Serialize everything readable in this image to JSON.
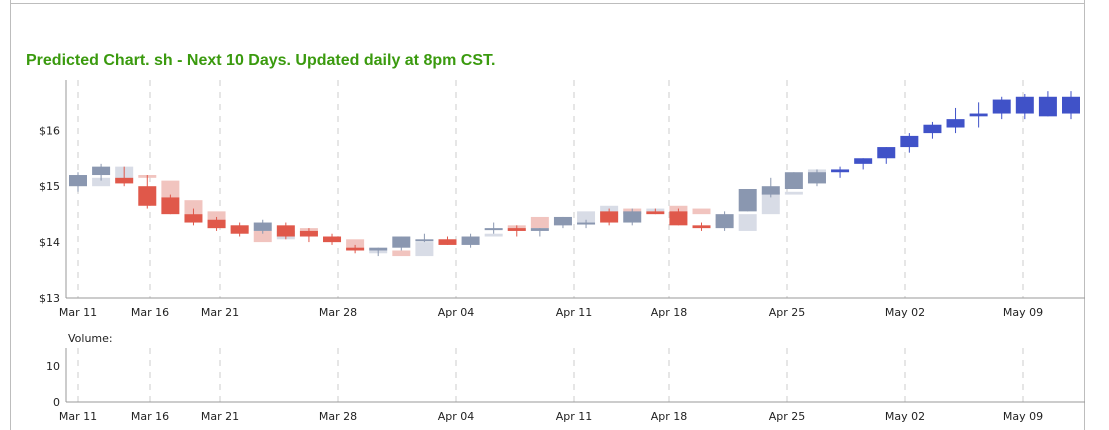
{
  "title": "Predicted Chart. sh - Next 10 Days. Updated daily at 8pm CST.",
  "colors": {
    "title": "#3a9a0e",
    "up_strong": "#8a97b0",
    "up_faded": "#d8dce6",
    "down_strong": "#e0584a",
    "down_faded": "#f1c4bf",
    "pred_up": "#4052c8",
    "pred_down": "#f1431d",
    "axis": "#999999",
    "grid": "#cccccc"
  },
  "chart_data": [
    {
      "type": "candlestick",
      "x_labels": [
        "Mar 11",
        "Mar 16",
        "Mar 21",
        "Mar 28",
        "Apr 04",
        "Apr 11",
        "Apr 18",
        "Apr 25",
        "May 02",
        "May 09"
      ],
      "y_ticks": [
        "$13",
        "$14",
        "$15",
        "$16"
      ],
      "ylim": [
        13,
        16.9
      ],
      "grid": "vertical dashed",
      "series": [
        {
          "date": "Mar 11",
          "open": 15.0,
          "high": 15.25,
          "low": 14.9,
          "close": 15.2,
          "echo_open": 15.05,
          "echo_close": 15.15,
          "echo_color": "down"
        },
        {
          "date": "Mar 12",
          "open": 15.2,
          "high": 15.4,
          "low": 15.1,
          "close": 15.35,
          "echo_open": 15.0,
          "echo_close": 15.15,
          "echo_color": "up"
        },
        {
          "date": "Mar 13",
          "open": 15.15,
          "high": 15.35,
          "low": 15.0,
          "close": 15.05,
          "echo_open": 15.1,
          "echo_close": 15.35,
          "echo_color": "up"
        },
        {
          "date": "Mar 14",
          "open": 15.0,
          "high": 15.2,
          "low": 14.6,
          "close": 14.65,
          "echo_open": 15.15,
          "echo_close": 15.2,
          "echo_color": "down"
        },
        {
          "date": "Mar 15",
          "open": 14.8,
          "high": 14.85,
          "low": 14.5,
          "close": 14.5,
          "echo_open": 14.8,
          "echo_close": 15.1,
          "echo_color": "down"
        },
        {
          "date": "Mar 16",
          "open": 14.5,
          "high": 14.6,
          "low": 14.3,
          "close": 14.35,
          "echo_open": 14.5,
          "echo_close": 14.75,
          "echo_color": "down"
        },
        {
          "date": "Mar 17",
          "open": 14.4,
          "high": 14.45,
          "low": 14.2,
          "close": 14.25,
          "echo_open": 14.25,
          "echo_close": 14.55,
          "echo_color": "down"
        },
        {
          "date": "Mar 18",
          "open": 14.3,
          "high": 14.35,
          "low": 14.1,
          "close": 14.15,
          "echo_open": 14.2,
          "echo_close": 14.3,
          "echo_color": "down"
        },
        {
          "date": "Mar 19",
          "open": 14.2,
          "high": 14.4,
          "low": 14.15,
          "close": 14.35,
          "echo_open": 14.2,
          "echo_close": 14.0,
          "echo_color": "down"
        },
        {
          "date": "Mar 20",
          "open": 14.3,
          "high": 14.35,
          "low": 14.05,
          "close": 14.1,
          "echo_open": 14.05,
          "echo_close": 14.2,
          "echo_color": "up"
        },
        {
          "date": "Mar 21",
          "open": 14.2,
          "high": 14.25,
          "low": 14.0,
          "close": 14.1,
          "echo_open": 14.25,
          "echo_close": 14.1,
          "echo_color": "down"
        },
        {
          "date": "Mar 22",
          "open": 14.1,
          "high": 14.15,
          "low": 13.95,
          "close": 14.0,
          "echo_open": 14.1,
          "echo_close": 14.0,
          "echo_color": "down"
        },
        {
          "date": "Mar 25",
          "open": 13.9,
          "high": 13.95,
          "low": 13.8,
          "close": 13.85,
          "echo_open": 14.05,
          "echo_close": 13.85,
          "echo_color": "down"
        },
        {
          "date": "Mar 26",
          "open": 13.85,
          "high": 13.9,
          "low": 13.75,
          "close": 13.9,
          "echo_open": 13.8,
          "echo_close": 13.85,
          "echo_color": "up"
        },
        {
          "date": "Mar 27",
          "open": 13.9,
          "high": 14.1,
          "low": 13.85,
          "close": 14.1,
          "echo_open": 13.85,
          "echo_close": 13.75,
          "echo_color": "down"
        },
        {
          "date": "Mar 28",
          "open": 14.05,
          "high": 14.15,
          "low": 14.0,
          "close": 14.05,
          "echo_open": 13.75,
          "echo_close": 14.0,
          "echo_color": "up"
        },
        {
          "date": "Mar 29",
          "open": 14.05,
          "high": 14.1,
          "low": 13.95,
          "close": 13.95,
          "echo_open": 14.05,
          "echo_close": 13.95,
          "echo_color": "down"
        },
        {
          "date": "Apr 01",
          "open": 13.95,
          "high": 14.15,
          "low": 13.9,
          "close": 14.1,
          "echo_open": 13.95,
          "echo_close": 14.0,
          "echo_color": "up"
        },
        {
          "date": "Apr 02",
          "open": 14.25,
          "high": 14.35,
          "low": 14.15,
          "close": 14.25,
          "echo_open": 14.1,
          "echo_close": 14.15,
          "echo_color": "up"
        },
        {
          "date": "Apr 03",
          "open": 14.25,
          "high": 14.3,
          "low": 14.1,
          "close": 14.2,
          "echo_open": 14.2,
          "echo_close": 14.3,
          "echo_color": "down"
        },
        {
          "date": "Apr 04",
          "open": 14.2,
          "high": 14.25,
          "low": 14.1,
          "close": 14.25,
          "echo_open": 14.25,
          "echo_close": 14.45,
          "echo_color": "down"
        },
        {
          "date": "Apr 05",
          "open": 14.3,
          "high": 14.45,
          "low": 14.25,
          "close": 14.45,
          "echo_open": 14.3,
          "echo_close": 14.35,
          "echo_color": "up"
        },
        {
          "date": "Apr 08",
          "open": 14.35,
          "high": 14.4,
          "low": 14.25,
          "close": 14.35,
          "echo_open": 14.35,
          "echo_close": 14.55,
          "echo_color": "up"
        },
        {
          "date": "Apr 09",
          "open": 14.55,
          "high": 14.6,
          "low": 14.3,
          "close": 14.35,
          "echo_open": 14.4,
          "echo_close": 14.65,
          "echo_color": "up"
        },
        {
          "date": "Apr 10",
          "open": 14.35,
          "high": 14.6,
          "low": 14.3,
          "close": 14.55,
          "echo_open": 14.5,
          "echo_close": 14.6,
          "echo_color": "down"
        },
        {
          "date": "Apr 11",
          "open": 14.55,
          "high": 14.6,
          "low": 14.5,
          "close": 14.5,
          "echo_open": 14.55,
          "echo_close": 14.6,
          "echo_color": "up"
        },
        {
          "date": "Apr 12",
          "open": 14.55,
          "high": 14.6,
          "low": 14.3,
          "close": 14.3,
          "echo_open": 14.5,
          "echo_close": 14.65,
          "echo_color": "down"
        },
        {
          "date": "Apr 15",
          "open": 14.3,
          "high": 14.35,
          "low": 14.2,
          "close": 14.25,
          "echo_open": 14.5,
          "echo_close": 14.6,
          "echo_color": "down"
        },
        {
          "date": "Apr 16",
          "open": 14.25,
          "high": 14.55,
          "low": 14.2,
          "close": 14.5,
          "echo_open": 14.3,
          "echo_close": 14.4,
          "echo_color": "down"
        },
        {
          "date": "Apr 17",
          "open": 14.55,
          "high": 14.95,
          "low": 14.55,
          "close": 14.95,
          "echo_open": 14.2,
          "echo_close": 14.5,
          "echo_color": "up"
        },
        {
          "date": "Apr 18",
          "open": 14.85,
          "high": 15.15,
          "low": 14.8,
          "close": 15.0,
          "echo_open": 14.5,
          "echo_close": 14.9,
          "echo_color": "up"
        },
        {
          "date": "Apr 19",
          "open": 14.95,
          "high": 15.25,
          "low": 14.95,
          "close": 15.25,
          "echo_open": 14.85,
          "echo_close": 14.9,
          "echo_color": "up"
        },
        {
          "date": "Apr 22",
          "open": 15.05,
          "high": 15.3,
          "low": 15.0,
          "close": 15.25,
          "echo_open": 15.05,
          "echo_close": 15.3,
          "echo_color": "up"
        },
        {
          "date": "Apr 23",
          "open": 15.25,
          "high": 15.35,
          "low": 15.15,
          "close": 15.3,
          "echo_open": null,
          "echo_close": null,
          "echo_color": null,
          "predicted": true
        },
        {
          "date": "Apr 24",
          "open": 15.4,
          "high": 15.5,
          "low": 15.3,
          "close": 15.5,
          "predicted": true
        },
        {
          "date": "Apr 25",
          "open": 15.5,
          "high": 15.7,
          "low": 15.4,
          "close": 15.7,
          "predicted": true
        },
        {
          "date": "Apr 26",
          "open": 15.7,
          "high": 15.95,
          "low": 15.6,
          "close": 15.9,
          "predicted": true
        },
        {
          "date": "Apr 29",
          "open": 15.95,
          "high": 16.15,
          "low": 15.85,
          "close": 16.1,
          "predicted": true
        },
        {
          "date": "Apr 30",
          "open": 16.05,
          "high": 16.4,
          "low": 15.95,
          "close": 16.2,
          "predicted": true
        },
        {
          "date": "May 01",
          "open": 16.25,
          "high": 16.5,
          "low": 16.05,
          "close": 16.3,
          "predicted": true
        },
        {
          "date": "May 02",
          "open": 16.3,
          "high": 16.6,
          "low": 16.2,
          "close": 16.55,
          "predicted": true
        },
        {
          "date": "May 03",
          "open": 16.3,
          "high": 16.65,
          "low": 16.2,
          "close": 16.6,
          "predicted": true
        },
        {
          "date": "May 06",
          "open": 16.25,
          "high": 16.7,
          "low": 16.25,
          "close": 16.6,
          "predicted": true
        },
        {
          "date": "May 07",
          "open": 16.3,
          "high": 16.7,
          "low": 16.2,
          "close": 16.6,
          "predicted": true
        }
      ]
    },
    {
      "type": "bar",
      "label": "Volume:",
      "x_labels": [
        "Mar 11",
        "Mar 16",
        "Mar 21",
        "Mar 28",
        "Apr 04",
        "Apr 11",
        "Apr 18",
        "Apr 25",
        "May 02",
        "May 09"
      ],
      "y_ticks": [
        "0",
        "10"
      ],
      "ylim": [
        0,
        15
      ],
      "values": []
    }
  ]
}
